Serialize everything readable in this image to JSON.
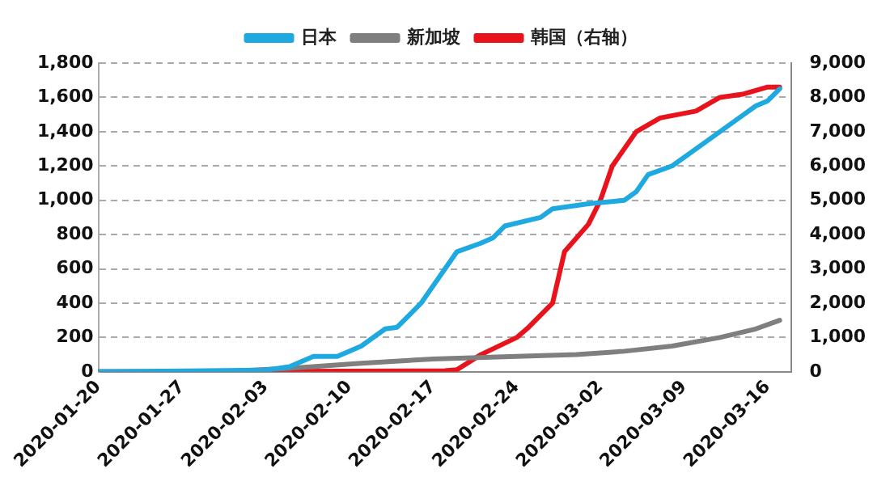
{
  "chart_data": {
    "type": "line",
    "legend": "top",
    "grid": "y",
    "line_style": "solid",
    "marker": "none",
    "xlim": [
      "2020-01-20",
      "2020-03-18"
    ],
    "xticks": [
      "2020-01-20",
      "2020-01-27",
      "2020-02-03",
      "2020-02-10",
      "2020-02-17",
      "2020-02-24",
      "2020-03-02",
      "2020-03-09",
      "2020-03-16"
    ],
    "ylim": [
      0,
      1800
    ],
    "yticks": [
      0,
      200,
      400,
      600,
      800,
      {
        "value": 1000,
        "label": "1,000"
      },
      {
        "value": 1200,
        "label": "1,200"
      },
      {
        "value": 1400,
        "label": "1,400"
      },
      {
        "value": 1600,
        "label": "1,600"
      },
      {
        "value": 1800,
        "label": "1,800"
      }
    ],
    "y2lim": [
      0,
      9000
    ],
    "y2ticks": [
      0,
      {
        "value": 1000,
        "label": "1,000"
      },
      {
        "value": 2000,
        "label": "2,000"
      },
      {
        "value": 3000,
        "label": "3,000"
      },
      {
        "value": 4000,
        "label": "4,000"
      },
      {
        "value": 5000,
        "label": "5,000"
      },
      {
        "value": 6000,
        "label": "6,000"
      },
      {
        "value": 7000,
        "label": "7,000"
      },
      {
        "value": 8000,
        "label": "8,000"
      },
      {
        "value": 9000,
        "label": "9,000"
      }
    ],
    "series": [
      {
        "name": "日本",
        "color": "#1fa9e1",
        "x": [
          "2020-01-20",
          "2020-02-03",
          "2020-02-05",
          "2020-02-07",
          "2020-02-09",
          "2020-02-11",
          "2020-02-13",
          "2020-02-14",
          "2020-02-16",
          "2020-02-19",
          "2020-02-21",
          "2020-02-22",
          "2020-02-23",
          "2020-02-26",
          "2020-02-27",
          "2020-03-01",
          "2020-03-04",
          "2020-03-05",
          "2020-03-06",
          "2020-03-08",
          "2020-03-10",
          "2020-03-12",
          "2020-03-14",
          "2020-03-15",
          "2020-03-16",
          "2020-03-17"
        ],
        "values": [
          0,
          10,
          30,
          90,
          90,
          150,
          250,
          260,
          400,
          700,
          750,
          780,
          850,
          900,
          950,
          980,
          1000,
          1050,
          1150,
          1200,
          1300,
          1400,
          1500,
          1550,
          1580,
          1650
        ]
      },
      {
        "name": "新加坡",
        "color": "#7f7f7f",
        "x": [
          "2020-01-20",
          "2020-01-30",
          "2020-02-05",
          "2020-02-11",
          "2020-02-17",
          "2020-02-24",
          "2020-02-29",
          "2020-03-04",
          "2020-03-08",
          "2020-03-12",
          "2020-03-15",
          "2020-03-17"
        ],
        "values": [
          0,
          0,
          20,
          50,
          75,
          90,
          100,
          120,
          150,
          200,
          250,
          300
        ]
      },
      {
        "name": "韩国（右轴）",
        "color": "#e8131b",
        "axis": "y2",
        "x": [
          "2020-01-20",
          "2020-02-18",
          "2020-02-19",
          "2020-02-21",
          "2020-02-24",
          "2020-02-25",
          "2020-02-27",
          "2020-02-28",
          "2020-03-01",
          "2020-03-02",
          "2020-03-03",
          "2020-03-05",
          "2020-03-07",
          "2020-03-10",
          "2020-03-12",
          "2020-03-14",
          "2020-03-16",
          "2020-03-17"
        ],
        "values": [
          0,
          30,
          60,
          500,
          1000,
          1300,
          2000,
          3500,
          4300,
          5000,
          6000,
          7000,
          7400,
          7600,
          8000,
          8100,
          8300,
          8300
        ]
      }
    ]
  }
}
